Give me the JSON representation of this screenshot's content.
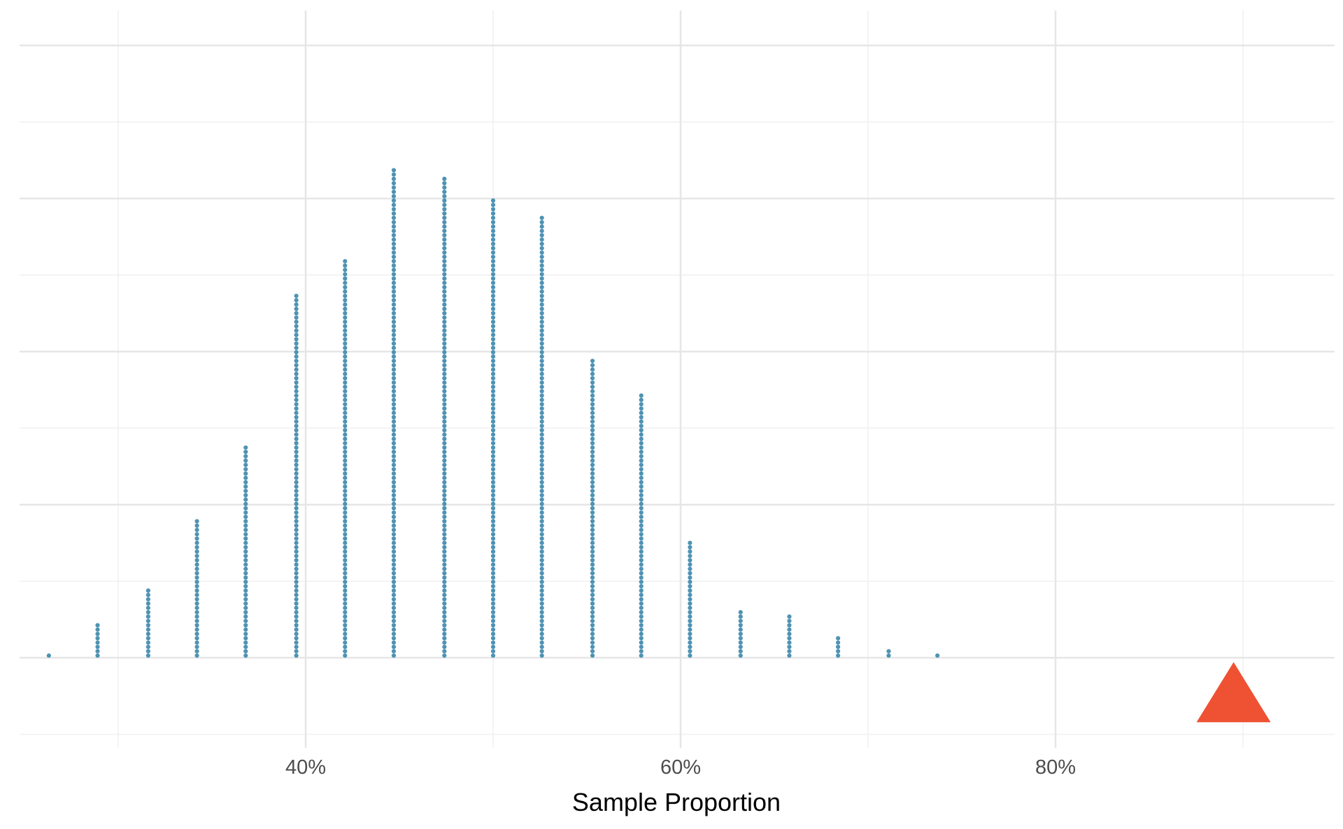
{
  "chart_data": {
    "type": "dotplot",
    "title": "",
    "xlabel": "Sample Proportion",
    "ylabel": "",
    "xlim": [
      0.25,
      0.95
    ],
    "ylim": [
      -1,
      8
    ],
    "grid": true,
    "legend": "none",
    "x_ticks": [
      {
        "value": 0.4,
        "label": "40%"
      },
      {
        "value": 0.6,
        "label": "60%"
      },
      {
        "value": 0.8,
        "label": "80%"
      }
    ],
    "x_minor_ticks": [
      0.3,
      0.5,
      0.7,
      0.9
    ],
    "y_major_gridlines": [
      0,
      2,
      4,
      6,
      8
    ],
    "y_minor_gridlines": [
      -1,
      1,
      3,
      5,
      7
    ],
    "series": [
      {
        "marker": "dot",
        "color": "#4f93b3",
        "x": [
          0.263,
          0.289,
          0.316,
          0.342,
          0.368,
          0.395,
          0.421,
          0.447,
          0.474,
          0.5,
          0.526,
          0.553,
          0.579,
          0.605,
          0.632,
          0.658,
          0.684,
          0.711,
          0.737
        ],
        "stack_top": [
          0.02,
          0.45,
          0.91,
          1.84,
          2.8,
          4.73,
          5.19,
          6.38,
          6.28,
          6.02,
          5.76,
          3.88,
          3.47,
          1.52,
          0.64,
          0.54,
          0.29,
          0.1,
          0.02
        ]
      },
      {
        "marker": "triangle",
        "color": "#ee5233",
        "x": [
          0.895
        ],
        "y": [
          -0.45
        ]
      }
    ]
  }
}
